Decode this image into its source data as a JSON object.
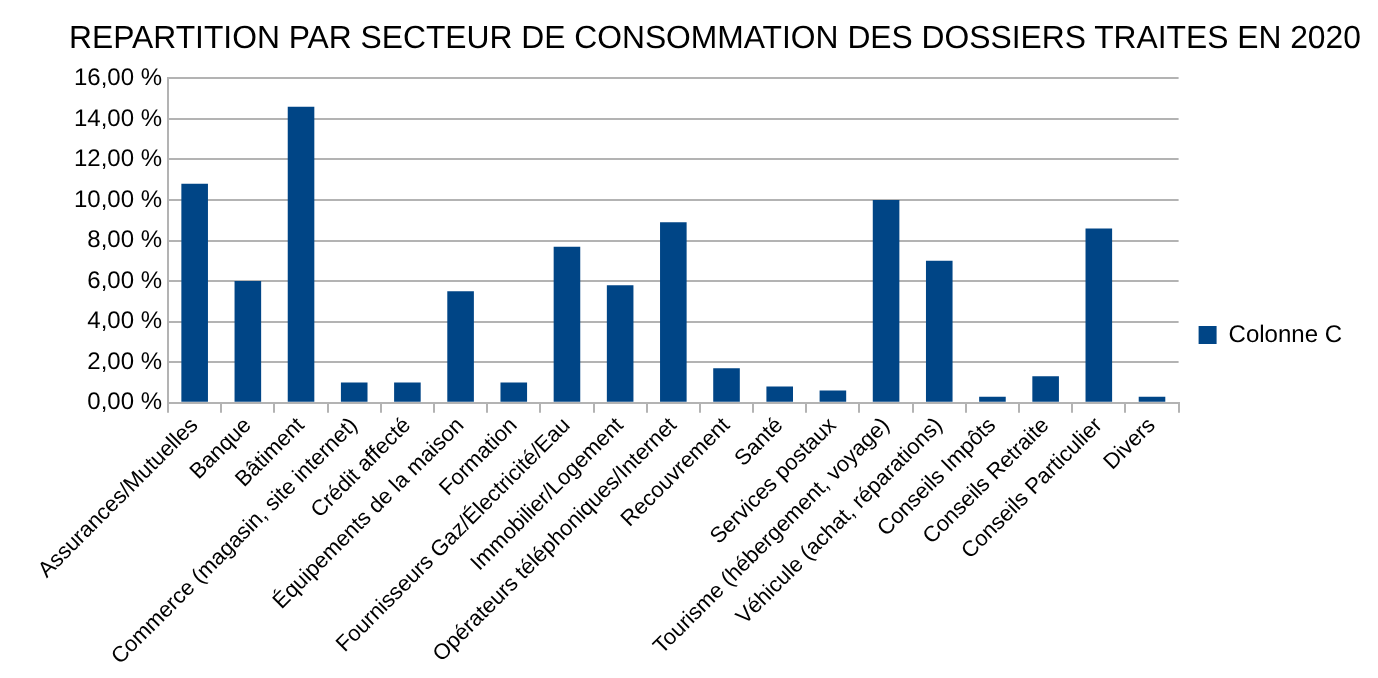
{
  "chart_data": {
    "type": "bar",
    "title": "REPARTITION PAR SECTEUR DE CONSOMMATION DES DOSSIERS TRAITES EN 2020",
    "categories": [
      "Assurances/Mutuelles",
      "Banque",
      "Bâtiment",
      "Commerce (magasin, site internet)",
      "Crédit affecté",
      "Équipements de la maison",
      "Formation",
      "Fournisseurs Gaz/Électricité/Eau",
      "Immobilier/Logement",
      "Opérateurs téléphoniques/Internet",
      "Recouvrement",
      "Santé",
      "Services postaux",
      "Tourisme (hébergement, voyage)",
      "Véhicule (achat, réparations)",
      "Conseils Impôts",
      "Conseils Retraite",
      "Conseils Particulier",
      "Divers"
    ],
    "series": [
      {
        "name": "Colonne C",
        "color": "#004586",
        "values": [
          10.8,
          6.0,
          14.6,
          1.0,
          1.0,
          5.5,
          1.0,
          7.7,
          5.8,
          8.9,
          1.7,
          0.8,
          0.6,
          10.0,
          7.0,
          0.3,
          1.3,
          8.6,
          0.3
        ]
      }
    ],
    "ylim": [
      0,
      16
    ],
    "yticks": [
      {
        "value": 0,
        "label": "0,00 %"
      },
      {
        "value": 2,
        "label": "2,00 %"
      },
      {
        "value": 4,
        "label": "4,00 %"
      },
      {
        "value": 6,
        "label": "6,00 %"
      },
      {
        "value": 8,
        "label": "8,00 %"
      },
      {
        "value": 10,
        "label": "10,00 %"
      },
      {
        "value": 12,
        "label": "12,00 %"
      },
      {
        "value": 14,
        "label": "14,00 %"
      },
      {
        "value": 16,
        "label": "16,00 %"
      }
    ],
    "grid": "y",
    "legend": "right"
  }
}
